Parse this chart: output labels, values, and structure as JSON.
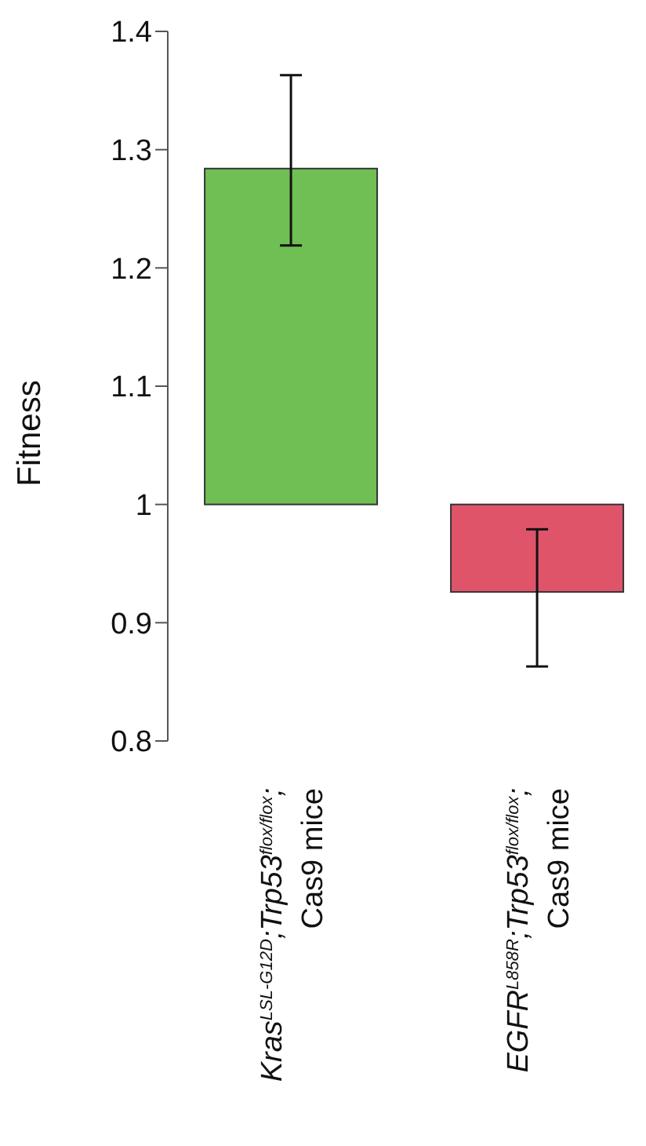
{
  "chart_data": {
    "type": "bar",
    "ylabel": "Fitness",
    "categories": [
      "Kras$^{LSL-G12D}$;Trp53$^{flox/flox}$;\nCas9 mice",
      "EGFR$^{L858R}$;Trp53$^{flox/flox}$;\nCas9 mice"
    ],
    "base": [
      1,
      1
    ],
    "values": [
      0.284,
      -0.074
    ],
    "colors": [
      "#70bf54",
      "#e0546a"
    ],
    "errors": [
      [
        1.219,
        1.363
      ],
      [
        0.863,
        0.979
      ]
    ],
    "ylim": [
      0.8,
      1.4
    ],
    "yticks": [
      0.8,
      0.9,
      1,
      1.1,
      1.2,
      1.3,
      1.4
    ]
  }
}
